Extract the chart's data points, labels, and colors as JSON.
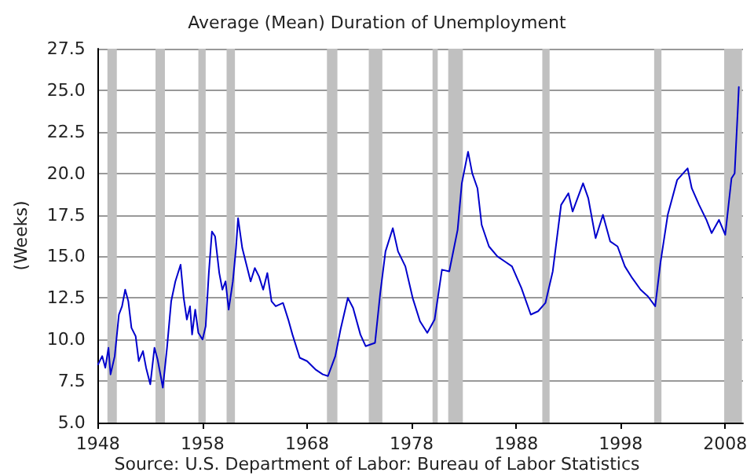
{
  "chart_data": {
    "type": "line",
    "title": "Average (Mean) Duration of Unemployment",
    "ylabel": "(Weeks)",
    "annotations": [
      "Source: U.S. Department of Labor: Bureau of Labor Statistics"
    ],
    "x": [
      1948.0,
      1948.4,
      1948.7,
      1949.0,
      1949.2,
      1949.6,
      1950.0,
      1950.3,
      1950.6,
      1950.9,
      1951.2,
      1951.6,
      1951.9,
      1952.3,
      1952.6,
      1953.0,
      1953.4,
      1953.7,
      1954.0,
      1954.2,
      1954.6,
      1955.0,
      1955.4,
      1955.9,
      1956.2,
      1956.5,
      1956.8,
      1957.0,
      1957.3,
      1957.6,
      1958.0,
      1958.3,
      1958.6,
      1958.9,
      1959.2,
      1959.6,
      1959.9,
      1960.2,
      1960.5,
      1960.9,
      1961.2,
      1961.4,
      1961.8,
      1962.2,
      1962.6,
      1963.0,
      1963.4,
      1963.8,
      1964.2,
      1964.6,
      1965.0,
      1965.7,
      1966.2,
      1966.6,
      1967.3,
      1968.0,
      1968.8,
      1969.5,
      1970.0,
      1970.7,
      1971.2,
      1971.9,
      1972.4,
      1973.1,
      1973.6,
      1974.5,
      1975.0,
      1975.5,
      1976.2,
      1976.7,
      1977.4,
      1978.1,
      1978.8,
      1979.5,
      1980.2,
      1980.9,
      1981.6,
      1982.4,
      1982.8,
      1983.4,
      1983.8,
      1984.3,
      1984.7,
      1985.4,
      1986.2,
      1986.9,
      1987.6,
      1988.5,
      1989.4,
      1990.1,
      1990.8,
      1991.5,
      1992.3,
      1993.0,
      1993.4,
      1994.4,
      1994.9,
      1995.6,
      1996.3,
      1997.0,
      1997.7,
      1998.4,
      1999.1,
      1999.9,
      2000.6,
      2001.3,
      2001.8,
      2002.5,
      2003.4,
      2004.4,
      2004.8,
      2005.5,
      2006.2,
      2006.7,
      2007.4,
      2008.0,
      2008.6,
      2008.9,
      2009.2,
      2009.3
    ],
    "series": [
      {
        "color": "#0000cc",
        "values": [
          8.5,
          9.0,
          8.3,
          9.5,
          7.9,
          9.0,
          11.5,
          12.0,
          13.0,
          12.3,
          10.7,
          10.2,
          8.7,
          9.3,
          8.3,
          7.3,
          9.5,
          8.8,
          7.8,
          7.1,
          9.5,
          12.3,
          13.5,
          14.5,
          12.5,
          11.2,
          12.0,
          10.3,
          11.8,
          10.4,
          10.0,
          10.8,
          14.0,
          16.5,
          16.2,
          14.0,
          13.0,
          13.5,
          11.8,
          13.5,
          15.5,
          17.3,
          15.5,
          14.5,
          13.5,
          14.3,
          13.8,
          13.0,
          14.0,
          12.3,
          12.0,
          12.2,
          11.2,
          10.3,
          8.9,
          8.7,
          8.2,
          7.9,
          7.8,
          9.0,
          10.6,
          12.5,
          11.9,
          10.3,
          9.6,
          9.8,
          12.8,
          15.3,
          16.7,
          15.3,
          14.4,
          12.5,
          11.1,
          10.4,
          11.2,
          14.2,
          14.1,
          16.6,
          19.4,
          21.3,
          20.0,
          19.1,
          16.9,
          15.6,
          15.0,
          14.7,
          14.4,
          13.1,
          11.5,
          11.7,
          12.2,
          14.1,
          18.1,
          18.8,
          17.7,
          19.4,
          18.5,
          16.1,
          17.5,
          15.9,
          15.6,
          14.4,
          13.7,
          13.0,
          12.6,
          12.0,
          14.6,
          17.5,
          19.6,
          20.3,
          19.1,
          18.1,
          17.2,
          16.4,
          17.2,
          16.3,
          19.7,
          20.0,
          23.8,
          25.2
        ]
      }
    ],
    "xlim": [
      1948,
      2009.7
    ],
    "xticks": [
      1948,
      1958,
      1968,
      1978,
      1988,
      1998,
      2008
    ],
    "ylim": [
      5,
      27.5
    ],
    "yticks": [
      {
        "value": 5,
        "label": "5.0"
      },
      {
        "value": 7.5,
        "label": "7.5"
      },
      {
        "value": 10,
        "label": "10.0"
      },
      {
        "value": 12.5,
        "label": "12.5"
      },
      {
        "value": 15,
        "label": "15.0"
      },
      {
        "value": 17.5,
        "label": "17.5"
      },
      {
        "value": 20,
        "label": "20.0"
      },
      {
        "value": 22.5,
        "label": "22.5"
      },
      {
        "value": 25,
        "label": "25.0"
      },
      {
        "value": 27.5,
        "label": "27.5"
      }
    ],
    "grid": "y",
    "marker": "none",
    "line_style": "solid",
    "bands": [
      {
        "axis": "x",
        "from": 1948.9,
        "to": 1949.8,
        "color": "#c0c0c0"
      },
      {
        "axis": "x",
        "from": 1953.5,
        "to": 1954.4,
        "color": "#c0c0c0"
      },
      {
        "axis": "x",
        "from": 1957.6,
        "to": 1958.3,
        "color": "#c0c0c0"
      },
      {
        "axis": "x",
        "from": 1960.3,
        "to": 1961.1,
        "color": "#c0c0c0"
      },
      {
        "axis": "x",
        "from": 1969.9,
        "to": 1970.9,
        "color": "#c0c0c0"
      },
      {
        "axis": "x",
        "from": 1973.9,
        "to": 1975.2,
        "color": "#c0c0c0"
      },
      {
        "axis": "x",
        "from": 1980.0,
        "to": 1980.5,
        "color": "#c0c0c0"
      },
      {
        "axis": "x",
        "from": 1981.5,
        "to": 1982.9,
        "color": "#c0c0c0"
      },
      {
        "axis": "x",
        "from": 1990.5,
        "to": 1991.2,
        "color": "#c0c0c0"
      },
      {
        "axis": "x",
        "from": 2001.2,
        "to": 2001.9,
        "color": "#c0c0c0"
      },
      {
        "axis": "x",
        "from": 2007.9,
        "to": 2009.6,
        "color": "#c0c0c0"
      }
    ]
  }
}
